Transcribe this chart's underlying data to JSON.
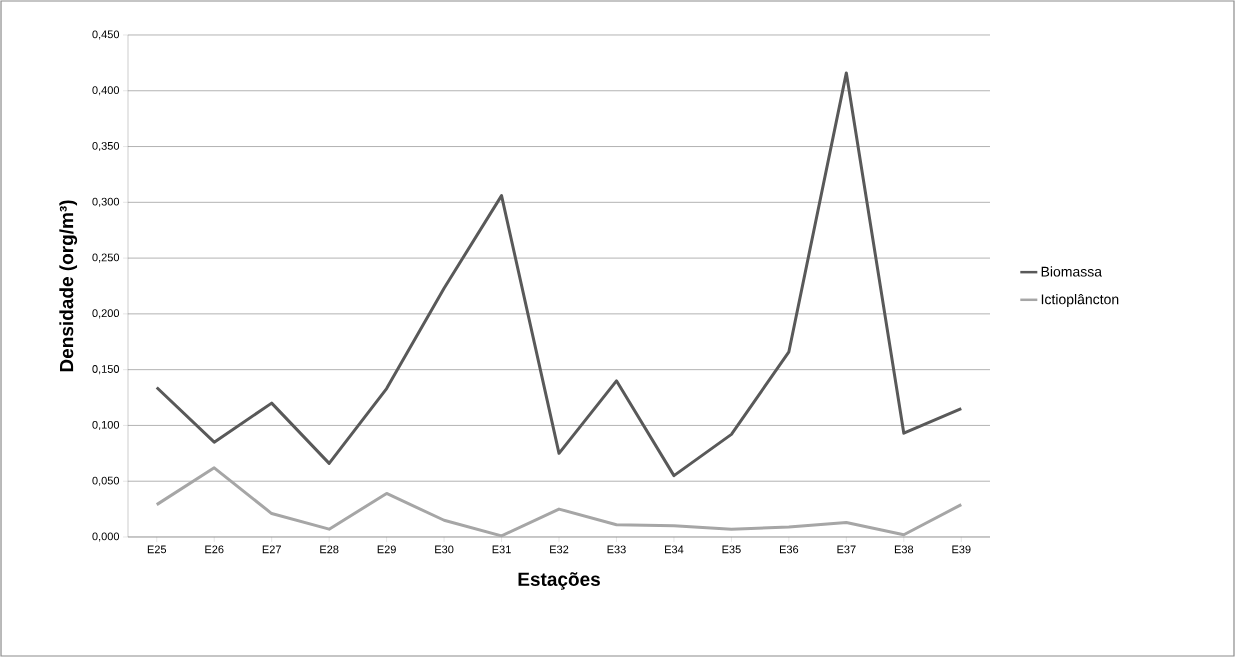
{
  "chart_data": {
    "type": "line",
    "xlabel": "Estações",
    "ylabel": "Densidade (org/m³)",
    "categories": [
      "E25",
      "E26",
      "E27",
      "E28",
      "E29",
      "E30",
      "E31",
      "E32",
      "E33",
      "E34",
      "E35",
      "E36",
      "E37",
      "E38",
      "E39"
    ],
    "series": [
      {
        "name": "Biomassa",
        "color": "#595959",
        "values": [
          0.134,
          0.085,
          0.12,
          0.066,
          0.133,
          0.223,
          0.306,
          0.075,
          0.14,
          0.055,
          0.092,
          0.166,
          0.416,
          0.093,
          0.115
        ]
      },
      {
        "name": "Ictioplâncton",
        "color": "#a6a6a6",
        "values": [
          0.029,
          0.062,
          0.021,
          0.007,
          0.039,
          0.015,
          0.001,
          0.025,
          0.011,
          0.01,
          0.007,
          0.009,
          0.013,
          0.002,
          0.029
        ]
      }
    ],
    "ylim": [
      0,
      0.45
    ],
    "yticks": [
      {
        "value": 0,
        "label": "0,000"
      },
      {
        "value": 0.05,
        "label": "0,050"
      },
      {
        "value": 0.1,
        "label": "0,100"
      },
      {
        "value": 0.15,
        "label": "0,150"
      },
      {
        "value": 0.2,
        "label": "0,200"
      },
      {
        "value": 0.25,
        "label": "0,250"
      },
      {
        "value": 0.3,
        "label": "0,300"
      },
      {
        "value": 0.35,
        "label": "0,350"
      },
      {
        "value": 0.4,
        "label": "0,400"
      },
      {
        "value": 0.45,
        "label": "0,450"
      }
    ],
    "grid": "y",
    "legend": "right",
    "marker": "none",
    "line_style": "solid"
  }
}
